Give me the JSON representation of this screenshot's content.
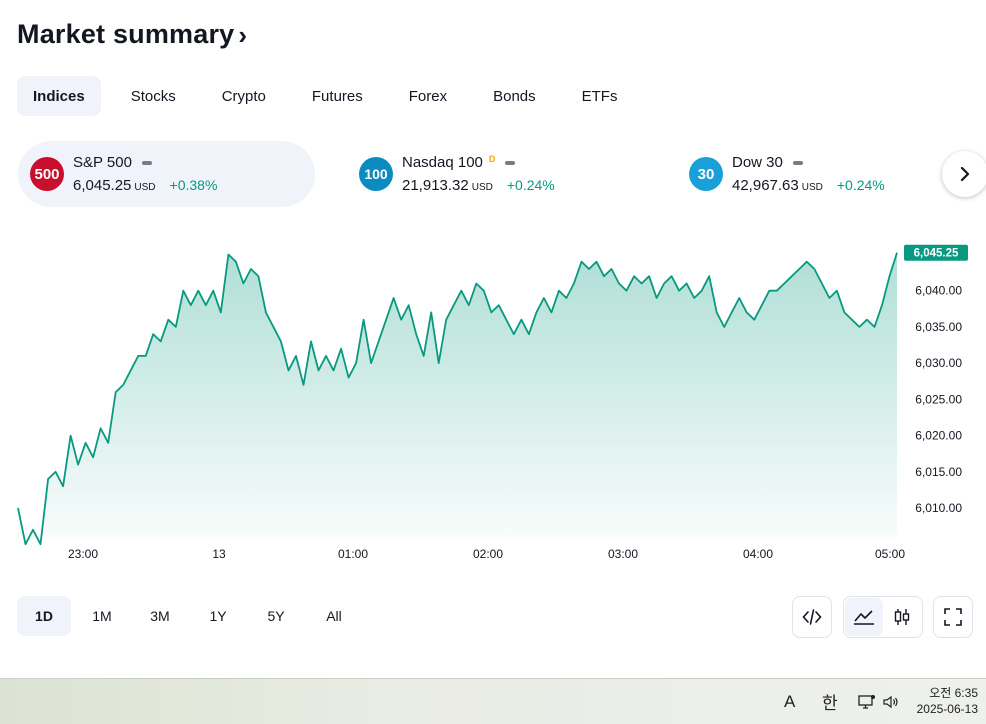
{
  "header": {
    "title": "Market summary",
    "chevron": "›"
  },
  "tabs": [
    {
      "label": "Indices",
      "active": true
    },
    {
      "label": "Stocks",
      "active": false
    },
    {
      "label": "Crypto",
      "active": false
    },
    {
      "label": "Futures",
      "active": false
    },
    {
      "label": "Forex",
      "active": false
    },
    {
      "label": "Bonds",
      "active": false
    },
    {
      "label": "ETFs",
      "active": false
    }
  ],
  "tickers": [
    {
      "badge": "500",
      "name": "S&P 500",
      "sup": "",
      "value": "6,045.25",
      "unit": "USD",
      "change": "+0.38%",
      "color": "#c8102e"
    },
    {
      "badge": "100",
      "name": "Nasdaq 100",
      "sup": "D",
      "value": "21,913.32",
      "unit": "USD",
      "change": "+0.24%",
      "color": "#0b8bbf"
    },
    {
      "badge": "30",
      "name": "Dow 30",
      "sup": "",
      "value": "42,967.63",
      "unit": "USD",
      "change": "+0.24%",
      "color": "#1aa0d8"
    }
  ],
  "next_icon": "chevron-right-icon",
  "chart_data": {
    "type": "area",
    "x_ticks": [
      "23:00",
      "13",
      "01:00",
      "02:00",
      "03:00",
      "04:00",
      "05:00"
    ],
    "y_ticks": [
      "6,010.00",
      "6,015.00",
      "6,020.00",
      "6,025.00",
      "6,030.00",
      "6,035.00",
      "6,040.00"
    ],
    "ylim": [
      6006,
      6047
    ],
    "last_value_label": "6,045.25",
    "line_color": "#089981",
    "series": [
      {
        "values": [
          6010,
          6005,
          6007,
          6005,
          6014,
          6015,
          6013,
          6020,
          6016,
          6019,
          6017,
          6021,
          6019,
          6026,
          6027,
          6029,
          6031,
          6031,
          6034,
          6033,
          6036,
          6035,
          6040,
          6038,
          6040,
          6038,
          6040,
          6037,
          6045,
          6044,
          6041,
          6043,
          6042,
          6037,
          6035,
          6033,
          6029,
          6031,
          6027,
          6033,
          6029,
          6031,
          6029,
          6032,
          6028,
          6030,
          6036,
          6030,
          6033,
          6036,
          6039,
          6036,
          6038,
          6034,
          6031,
          6037,
          6030,
          6036,
          6038,
          6040,
          6038,
          6041,
          6040,
          6037,
          6038,
          6036,
          6034,
          6036,
          6034,
          6037,
          6039,
          6037,
          6040,
          6039,
          6041,
          6044,
          6043,
          6044,
          6042,
          6043,
          6041,
          6040,
          6042,
          6041,
          6042,
          6039,
          6041,
          6042,
          6040,
          6041,
          6039,
          6040,
          6042,
          6037,
          6035,
          6037,
          6039,
          6037,
          6036,
          6038,
          6040,
          6040,
          6041,
          6042,
          6043,
          6044,
          6043,
          6041,
          6039,
          6040,
          6037,
          6036,
          6035,
          6036,
          6035,
          6038,
          6042,
          6045.25
        ]
      }
    ]
  },
  "range": [
    {
      "label": "1D",
      "active": true
    },
    {
      "label": "1M",
      "active": false
    },
    {
      "label": "3M",
      "active": false
    },
    {
      "label": "1Y",
      "active": false
    },
    {
      "label": "5Y",
      "active": false
    },
    {
      "label": "All",
      "active": false
    }
  ],
  "tools": {
    "embed": "embed-code-icon",
    "line": "line-chart-icon",
    "candles": "candlestick-icon",
    "fullscreen": "fullscreen-icon"
  },
  "taskbar": {
    "ime_a": "A",
    "ime_han": "한",
    "time": "오전 6:35",
    "date": "2025-06-13"
  }
}
